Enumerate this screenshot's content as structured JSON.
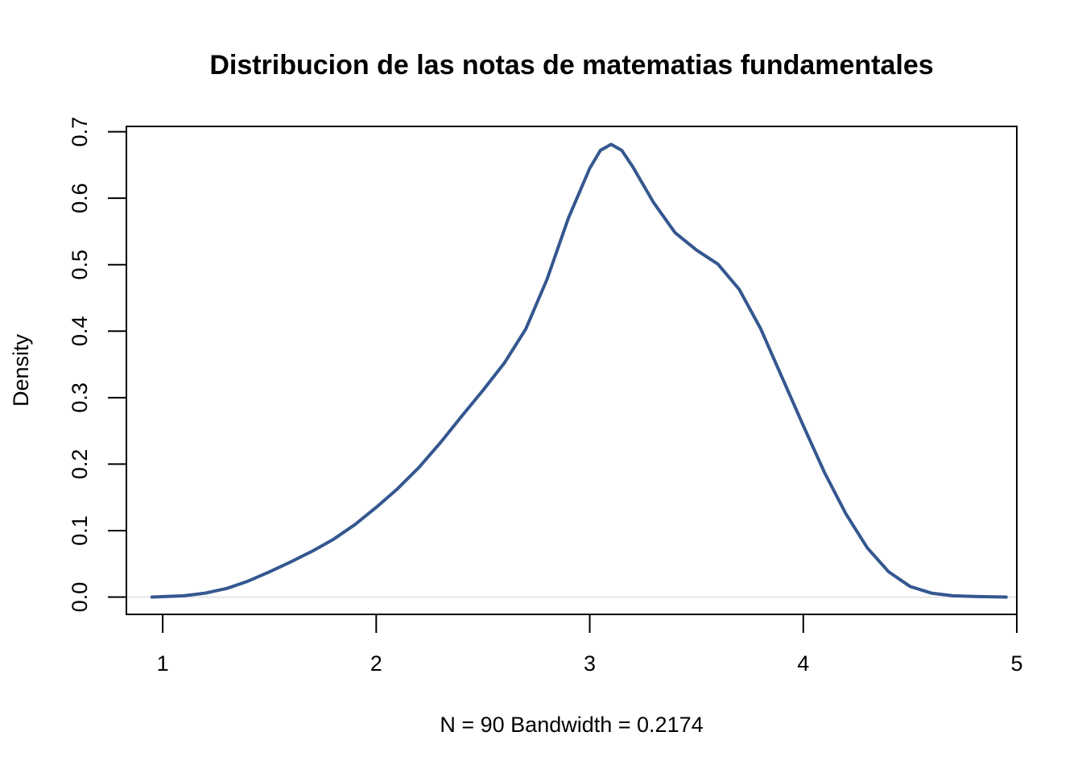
{
  "chart_data": {
    "type": "line",
    "title": "Distribucion de las notas de matematias fundamentales",
    "xlabel": "N = 90   Bandwidth = 0.2174",
    "ylabel": "Density",
    "xlim": [
      0.83,
      5.0
    ],
    "ylim": [
      -0.026,
      0.708
    ],
    "xticks": [
      1,
      2,
      3,
      4,
      5
    ],
    "xtick_labels": [
      "1",
      "2",
      "3",
      "4",
      "5"
    ],
    "yticks": [
      0.0,
      0.1,
      0.2,
      0.3,
      0.4,
      0.5,
      0.6,
      0.7
    ],
    "ytick_labels": [
      "0.0",
      "0.1",
      "0.2",
      "0.3",
      "0.4",
      "0.5",
      "0.6",
      "0.7"
    ],
    "grid": false,
    "line_color": "#34578F",
    "baseline_color": "#E6E6E6",
    "series": [
      {
        "x": [
          0.95,
          1.1,
          1.2,
          1.3,
          1.4,
          1.5,
          1.6,
          1.7,
          1.8,
          1.9,
          2.0,
          2.1,
          2.2,
          2.3,
          2.4,
          2.5,
          2.6,
          2.7,
          2.8,
          2.9,
          3.0,
          3.05,
          3.1,
          3.15,
          3.2,
          3.3,
          3.4,
          3.5,
          3.6,
          3.7,
          3.8,
          3.9,
          4.0,
          4.1,
          4.2,
          4.3,
          4.4,
          4.5,
          4.6,
          4.7,
          4.8,
          4.95
        ],
        "values": [
          0.0,
          0.002,
          0.006,
          0.013,
          0.024,
          0.038,
          0.053,
          0.069,
          0.087,
          0.109,
          0.135,
          0.163,
          0.195,
          0.232,
          0.272,
          0.311,
          0.352,
          0.403,
          0.478,
          0.57,
          0.645,
          0.672,
          0.681,
          0.672,
          0.648,
          0.593,
          0.548,
          0.522,
          0.501,
          0.463,
          0.404,
          0.331,
          0.258,
          0.187,
          0.125,
          0.074,
          0.038,
          0.016,
          0.006,
          0.002,
          0.001,
          0.0
        ]
      }
    ]
  }
}
